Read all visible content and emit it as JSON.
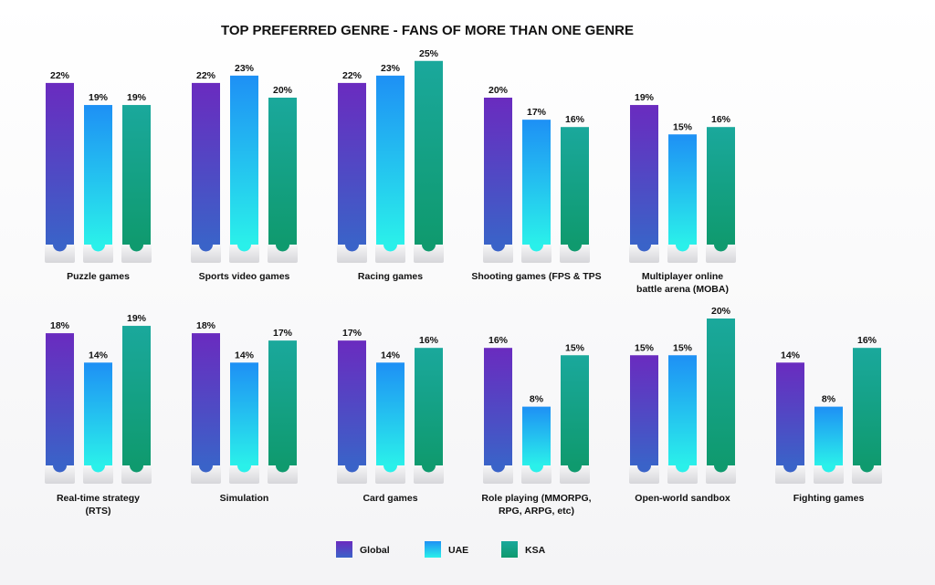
{
  "chart_data": {
    "type": "bar",
    "title": "TOP PREFERRED GENRE - FANS OF MORE THAN ONE GENRE",
    "unit": "%",
    "series": [
      {
        "name": "Global",
        "color": "#6a2bbf",
        "color_bottom": "#3a63c8"
      },
      {
        "name": "UAE",
        "color": "#1e90f5",
        "color_bottom": "#2af0ea"
      },
      {
        "name": "KSA",
        "color": "#1aa89c",
        "color_bottom": "#0f9a6e"
      }
    ],
    "groups": [
      {
        "label": [
          "Puzzle games"
        ],
        "values": [
          22,
          19,
          19
        ]
      },
      {
        "label": [
          "Sports video games"
        ],
        "values": [
          22,
          23,
          20
        ]
      },
      {
        "label": [
          "Racing games"
        ],
        "values": [
          22,
          23,
          25
        ]
      },
      {
        "label": [
          "Shooting games (FPS & TPS"
        ],
        "values": [
          20,
          17,
          16
        ]
      },
      {
        "label": [
          "Multiplayer online",
          "battle arena (MOBA)"
        ],
        "values": [
          19,
          15,
          16
        ]
      },
      {
        "label": [
          "Real-time strategy",
          "(RTS)"
        ],
        "values": [
          18,
          14,
          19
        ]
      },
      {
        "label": [
          "Simulation"
        ],
        "values": [
          18,
          14,
          17
        ]
      },
      {
        "label": [
          "Card games"
        ],
        "values": [
          17,
          14,
          16
        ]
      },
      {
        "label": [
          "Role playing (MMORPG,",
          "RPG, ARPG, etc)"
        ],
        "values": [
          16,
          8,
          15
        ]
      },
      {
        "label": [
          "Open-world sandbox"
        ],
        "values": [
          15,
          15,
          20
        ]
      },
      {
        "label": [
          "Fighting games"
        ],
        "values": [
          14,
          8,
          16
        ]
      }
    ],
    "xlabel": "",
    "ylabel": "",
    "legend": "bottom-center"
  }
}
